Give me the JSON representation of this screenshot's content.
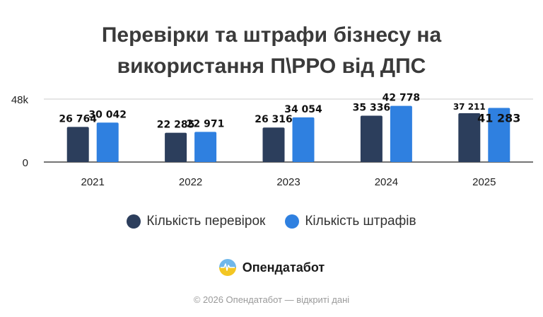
{
  "chart_data": {
    "type": "bar",
    "title_lines": [
      "Перевірки та штрафи бізнесу на",
      "використання П\\РРО від ДПС"
    ],
    "categories": [
      "2021",
      "2022",
      "2023",
      "2024",
      "2025"
    ],
    "series": [
      {
        "name": "Кількість перевірок",
        "color": "#2c3e5c",
        "values": [
          26764,
          22285,
          26316,
          35336,
          37211
        ],
        "labels": [
          "26 764",
          "22 285",
          "26 316",
          "35 336",
          "37 211"
        ]
      },
      {
        "name": "Кількість штрафів",
        "color": "#2f80e0",
        "values": [
          30042,
          22971,
          34054,
          42778,
          41283
        ],
        "labels": [
          "30 042",
          "22 971",
          "34 054",
          "42 778",
          "41 283"
        ]
      }
    ],
    "y_ticks": [
      {
        "value": 0,
        "label": "0"
      },
      {
        "value": 48000,
        "label": "48k"
      }
    ],
    "ylim": [
      0,
      48000
    ],
    "grid": true,
    "legend_position": "bottom"
  },
  "brand": {
    "name": "Опендатабот",
    "logo_icon": "opendatabot-logo-icon"
  },
  "footer": {
    "text": "© 2026 Опендатабот — відкриті дані"
  }
}
